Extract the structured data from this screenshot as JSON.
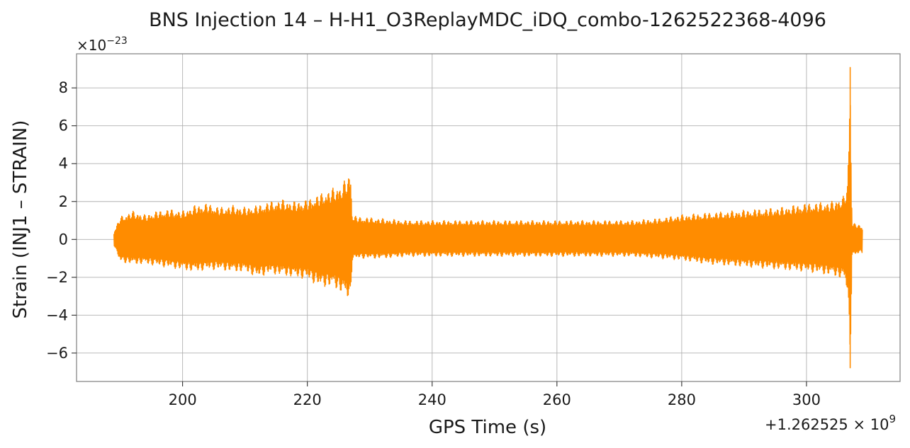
{
  "chart_data": {
    "type": "line",
    "title": "BNS Injection 14 – H-H1_O3ReplayMDC_iDQ_combo-1262522368-4096",
    "xlabel": "GPS Time (s)",
    "ylabel": "Strain (INJ1 – STRAIN)",
    "x_offset_label": "+1.262525 × 10",
    "x_offset_exponent": "9",
    "y_multiplier_label": "×10",
    "y_multiplier_exponent": "−23",
    "xlim": [
      183.0,
      315.0
    ],
    "ylim": [
      -7.5,
      9.8
    ],
    "xticks": [
      200,
      220,
      240,
      260,
      280,
      300
    ],
    "yticks": [
      -6,
      -4,
      -2,
      0,
      2,
      4,
      6,
      8
    ],
    "grid": true,
    "line_color": "#ff8c00",
    "series": [
      {
        "x": [
          189.0,
          190.0,
          192.0,
          194.0,
          196.0,
          198.0,
          200.0,
          202.0,
          204.0,
          206.0,
          208.0,
          210.0,
          212.0,
          214.0,
          216.0,
          218.0,
          220.0,
          222.0,
          224.0,
          225.5,
          226.6,
          226.9,
          227.2,
          228.0,
          232.0,
          236.0,
          240.0,
          244.0,
          248.0,
          252.0,
          256.0,
          260.0,
          264.0,
          268.0,
          272.0,
          276.0,
          280.0,
          284.0,
          288.0,
          292.0,
          296.0,
          300.0,
          304.0,
          306.0,
          306.6,
          307.0,
          307.3,
          308.0,
          309.0
        ],
        "upper": [
          0.4,
          1.2,
          1.5,
          1.3,
          1.5,
          1.6,
          1.5,
          1.8,
          1.9,
          1.7,
          1.8,
          1.7,
          1.8,
          2.0,
          2.1,
          2.0,
          2.1,
          2.4,
          2.7,
          2.9,
          3.4,
          3.8,
          1.3,
          1.2,
          1.1,
          1.0,
          1.0,
          1.0,
          1.0,
          1.0,
          1.0,
          1.0,
          1.0,
          1.0,
          1.0,
          1.1,
          1.3,
          1.4,
          1.5,
          1.6,
          1.7,
          1.9,
          2.0,
          2.3,
          3.0,
          9.1,
          0.9,
          0.8,
          0.7
        ],
        "lower": [
          -0.3,
          -1.2,
          -1.3,
          -1.3,
          -1.4,
          -1.5,
          -1.6,
          -1.7,
          -1.6,
          -1.6,
          -1.7,
          -1.7,
          -2.0,
          -1.8,
          -1.9,
          -2.0,
          -2.1,
          -2.5,
          -2.5,
          -2.8,
          -3.2,
          -3.3,
          -1.1,
          -1.0,
          -1.0,
          -0.9,
          -0.9,
          -0.9,
          -0.9,
          -0.9,
          -0.9,
          -0.9,
          -0.9,
          -0.9,
          -0.9,
          -1.0,
          -1.1,
          -1.3,
          -1.4,
          -1.5,
          -1.6,
          -1.7,
          -1.9,
          -2.1,
          -2.8,
          -6.8,
          -0.9,
          -0.8,
          -0.7
        ]
      }
    ]
  }
}
